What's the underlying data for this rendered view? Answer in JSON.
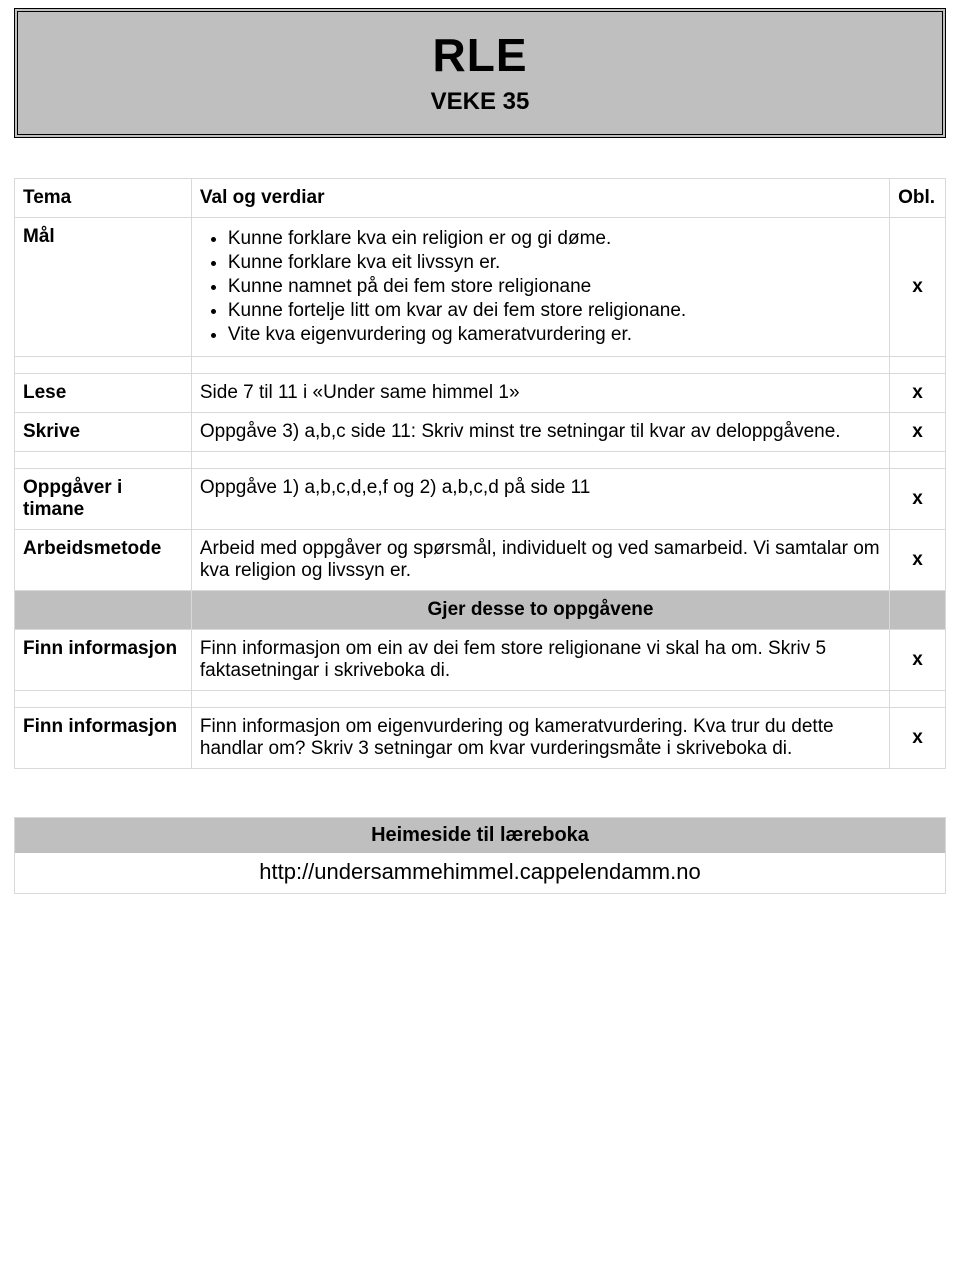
{
  "header": {
    "title": "RLE",
    "subtitle": "VEKE 35"
  },
  "columns": {
    "obl": "Obl."
  },
  "rows": {
    "tema": {
      "label": "Tema",
      "value": "Val og verdiar",
      "obl": ""
    },
    "maal": {
      "label": "Mål",
      "goals": [
        "Kunne forklare kva ein religion er og gi døme.",
        "Kunne forklare kva eit livssyn er.",
        "Kunne namnet på dei fem store religionane",
        "Kunne fortelje litt om kvar av dei fem store religionane.",
        "Vite kva eigenvurdering og kameratvurdering er."
      ],
      "obl": "x"
    },
    "lese": {
      "label": "Lese",
      "value": "Side 7 til 11 i «Under same himmel 1»",
      "obl": "x"
    },
    "skrive": {
      "label": "Skrive",
      "value": "Oppgåve 3) a,b,c side 11: Skriv minst tre setningar til kvar av deloppgåvene.",
      "obl": "x"
    },
    "oppgaver": {
      "label": "Oppgåver i timane",
      "value": "Oppgåve 1) a,b,c,d,e,f  og 2) a,b,c,d på side 11",
      "obl": "x"
    },
    "arbeidsmetode": {
      "label": "Arbeidsmetode",
      "value": "Arbeid med oppgåver og spørsmål, individuelt og ved samarbeid. Vi samtalar om kva religion og livssyn er.",
      "obl": "x"
    },
    "section": {
      "heading": "Gjer desse to oppgåvene"
    },
    "finn1": {
      "label": "Finn informasjon",
      "value": "Finn informasjon om ein av dei fem store religionane vi skal ha om. Skriv 5 faktasetningar i skriveboka di.",
      "obl": "x"
    },
    "finn2": {
      "label": "Finn informasjon",
      "value": "Finn informasjon om eigenvurdering og kameratvurdering. Kva trur du dette handlar om? Skriv 3 setningar om kvar vurderingsmåte i skriveboka di.",
      "obl": "x"
    }
  },
  "footer": {
    "title": "Heimeside til læreboka",
    "url": "http://undersammehimmel.cappelendamm.no"
  }
}
